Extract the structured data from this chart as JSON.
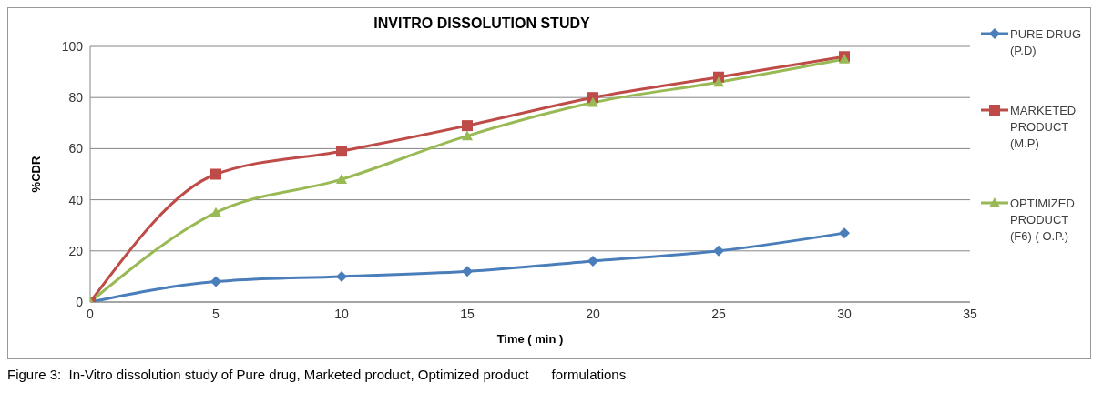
{
  "chart_data": {
    "type": "line",
    "title": "INVITRO DISSOLUTION STUDY",
    "xlabel": "Time ( min )",
    "ylabel": "%CDR",
    "x": [
      0,
      5,
      10,
      15,
      20,
      25,
      30
    ],
    "series": [
      {
        "name": "PURE DRUG (P.D)",
        "color": "#4a7ebb",
        "marker": "diamond",
        "values": [
          0,
          8,
          10,
          12,
          16,
          20,
          27
        ]
      },
      {
        "name": "MARKETED PRODUCT (M.P)",
        "color": "#be4b48",
        "marker": "square",
        "values": [
          0,
          50,
          59,
          69,
          80,
          88,
          96
        ]
      },
      {
        "name": "OPTIMIZED PRODUCT (F6) ( O.P.)",
        "color": "#98b954",
        "marker": "triangle",
        "values": [
          0,
          35,
          48,
          65,
          78,
          86,
          95
        ]
      }
    ],
    "xlim": [
      0,
      35
    ],
    "xticks": [
      0,
      5,
      10,
      15,
      20,
      25,
      30,
      35
    ],
    "ylim": [
      0,
      100
    ],
    "yticks": [
      0,
      20,
      40,
      60,
      80,
      100
    ],
    "grid": "y",
    "legend": "right",
    "line_style": "solid",
    "annotations": [
      "Figure 3:  In-Vitro dissolution study of Pure drug, Marketed product, Optimized product      formulations"
    ]
  }
}
